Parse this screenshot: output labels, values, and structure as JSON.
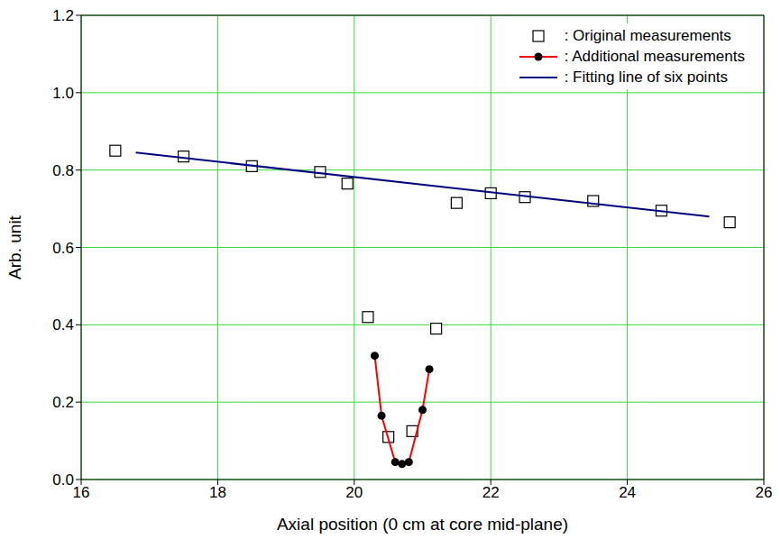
{
  "chart_data": {
    "type": "scatter",
    "x_label": "Axial position (0 cm at core mid-plane)",
    "y_label": "Arb. unit",
    "xlim": [
      16,
      26
    ],
    "xticks": [
      16,
      18,
      20,
      22,
      24,
      26
    ],
    "ylim": [
      0,
      1.2
    ],
    "yticks": [
      {
        "value": 0,
        "label": "0.0"
      },
      {
        "value": 0.2,
        "label": "0.2"
      },
      {
        "value": 0.4,
        "label": "0.4"
      },
      {
        "value": 0.6,
        "label": "0.6"
      },
      {
        "value": 0.8,
        "label": "0.8"
      },
      {
        "value": 1,
        "label": "1.0"
      },
      {
        "value": 1.2,
        "label": "1.2"
      }
    ],
    "grid": true,
    "legend": "upper right",
    "series": [
      {
        "name": ": Original measurements",
        "type": "scatter",
        "marker": "square",
        "color": "#000000",
        "x": [
          16.5,
          17.5,
          18.5,
          19.5,
          19.9,
          20.2,
          20.5,
          20.85,
          21.2,
          21.5,
          22.0,
          22.5,
          23.5,
          24.5,
          25.5
        ],
        "values": [
          0.85,
          0.835,
          0.81,
          0.795,
          0.765,
          0.42,
          0.11,
          0.125,
          0.39,
          0.715,
          0.74,
          0.73,
          0.72,
          0.695,
          0.665
        ]
      },
      {
        "name": ": Additional measurements",
        "type": "line",
        "marker": "circle",
        "color": "#ff0000",
        "x": [
          20.3,
          20.4,
          20.6,
          20.7,
          20.8,
          21.0,
          21.1
        ],
        "values": [
          0.32,
          0.165,
          0.045,
          0.04,
          0.045,
          0.18,
          0.285
        ]
      },
      {
        "name": ": Fitting line of six points",
        "type": "line",
        "marker": "none",
        "color": "#000080",
        "x": [
          16.8,
          25.2
        ],
        "values": [
          0.845,
          0.68
        ]
      }
    ]
  }
}
